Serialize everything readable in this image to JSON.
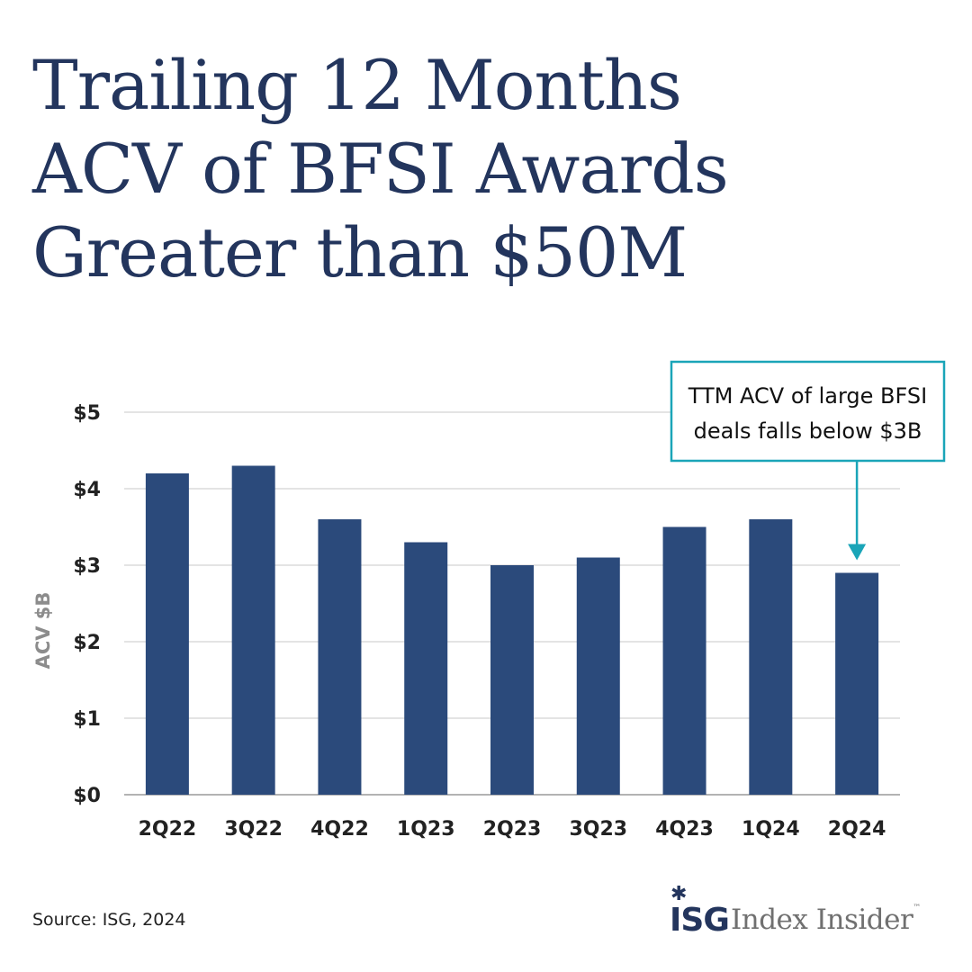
{
  "title_lines": [
    "Trailing 12 Months",
    "ACV of BFSI Awards",
    "Greater than $50M"
  ],
  "chart_data": {
    "type": "bar",
    "categories": [
      "2Q22",
      "3Q22",
      "4Q22",
      "1Q23",
      "2Q23",
      "3Q23",
      "4Q23",
      "1Q24",
      "2Q24"
    ],
    "values": [
      4.2,
      4.3,
      3.6,
      3.3,
      3.0,
      3.1,
      3.5,
      3.6,
      2.9
    ],
    "ylabel": "ACV $B",
    "ylim": [
      0,
      5
    ],
    "yticks": [
      0,
      1,
      2,
      3,
      4,
      5
    ],
    "ytick_labels": [
      "$0",
      "$1",
      "$2",
      "$3",
      "$4",
      "$5"
    ],
    "grid": true,
    "bar_color": "#2b4a7b",
    "annotation": {
      "lines": [
        "TTM ACV of large BFSI",
        "deals falls below $3B"
      ],
      "target_category": "2Q24",
      "color": "#1aa5b8"
    }
  },
  "footer": {
    "source": "Source: ISG, 2024",
    "logo_mark": "ISG",
    "logo_text": "Index Insider",
    "logo_tm": "™"
  },
  "colors": {
    "title": "#23355d",
    "bar": "#2b4a7b",
    "callout": "#1aa5b8"
  }
}
